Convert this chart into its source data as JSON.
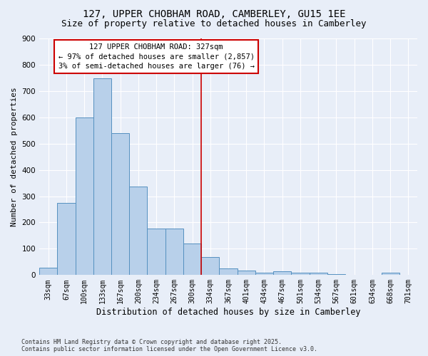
{
  "title": "127, UPPER CHOBHAM ROAD, CAMBERLEY, GU15 1EE",
  "subtitle": "Size of property relative to detached houses in Camberley",
  "xlabel": "Distribution of detached houses by size in Camberley",
  "ylabel": "Number of detached properties",
  "footnote1": "Contains HM Land Registry data © Crown copyright and database right 2025.",
  "footnote2": "Contains public sector information licensed under the Open Government Licence v3.0.",
  "annotation_line1": "127 UPPER CHOBHAM ROAD: 327sqm",
  "annotation_line2": "← 97% of detached houses are smaller (2,857)",
  "annotation_line3": "3% of semi-detached houses are larger (76) →",
  "bar_labels": [
    "33sqm",
    "67sqm",
    "100sqm",
    "133sqm",
    "167sqm",
    "200sqm",
    "234sqm",
    "267sqm",
    "300sqm",
    "334sqm",
    "367sqm",
    "401sqm",
    "434sqm",
    "467sqm",
    "501sqm",
    "534sqm",
    "567sqm",
    "601sqm",
    "634sqm",
    "668sqm",
    "701sqm"
  ],
  "bar_values": [
    27,
    275,
    600,
    748,
    540,
    338,
    176,
    176,
    120,
    68,
    25,
    18,
    10,
    14,
    9,
    10,
    3,
    0,
    0,
    8,
    0
  ],
  "bar_color": "#b8d0ea",
  "bar_edge_color": "#5590c0",
  "vline_color": "#cc0000",
  "vline_x_idx": 8.5,
  "annotation_box_color": "#cc0000",
  "background_color": "#e8eef8",
  "grid_color": "#ffffff",
  "ylim": [
    0,
    900
  ],
  "yticks": [
    0,
    100,
    200,
    300,
    400,
    500,
    600,
    700,
    800,
    900
  ],
  "title_fontsize": 10,
  "subtitle_fontsize": 9,
  "tick_fontsize": 7,
  "xlabel_fontsize": 8.5,
  "ylabel_fontsize": 8,
  "annot_fontsize": 7.5,
  "footnote_fontsize": 6
}
